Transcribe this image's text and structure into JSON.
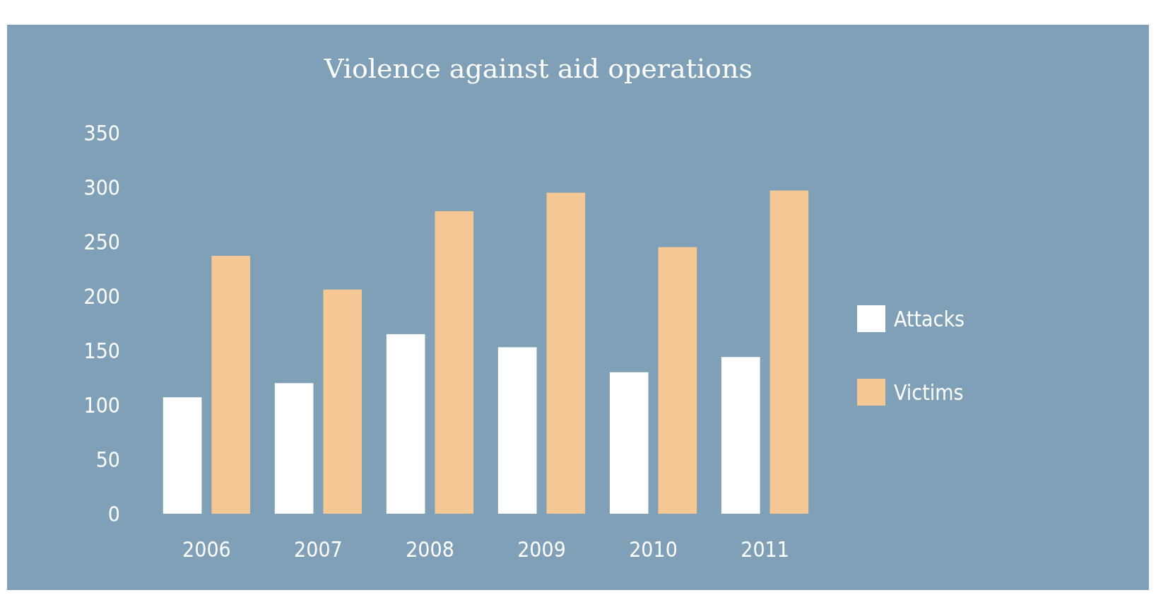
{
  "chart_data": {
    "type": "bar",
    "title": "Violence against aid operations",
    "categories": [
      "2006",
      "2007",
      "2008",
      "2009",
      "2010",
      "2011"
    ],
    "series": [
      {
        "name": "Attacks",
        "color": "#ffffff",
        "values": [
          107,
          120,
          165,
          153,
          130,
          144
        ]
      },
      {
        "name": "Victims",
        "color": "#f5c794",
        "values": [
          237,
          206,
          278,
          295,
          245,
          297
        ]
      }
    ],
    "ylim": [
      0,
      350
    ],
    "yticks": [
      0,
      50,
      100,
      150,
      200,
      250,
      300,
      350
    ],
    "grid": false,
    "legend": "right"
  }
}
